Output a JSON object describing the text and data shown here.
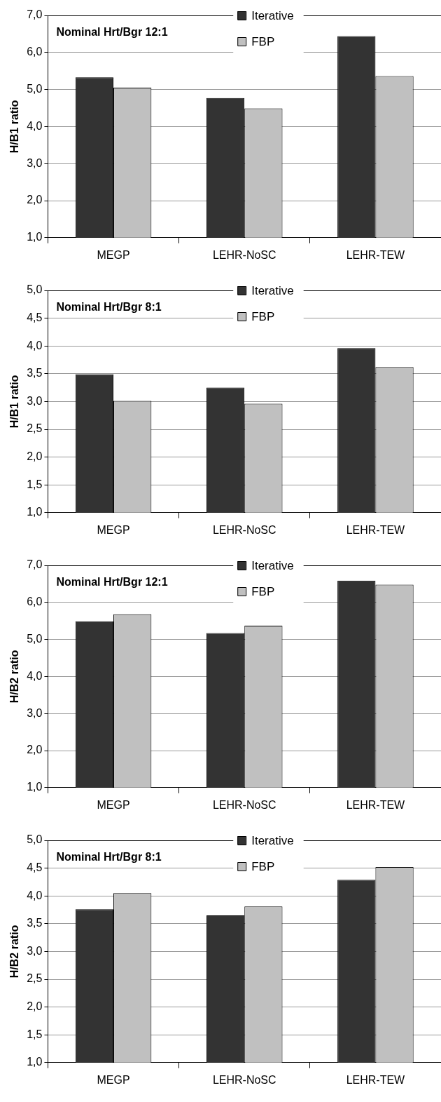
{
  "chart_data": [
    {
      "type": "bar",
      "title": "Nominal Hrt/Bgr 12:1",
      "ylabel": "H/B1 ratio",
      "categories": [
        "MEGP",
        "LEHR-NoSC",
        "LEHR-TEW"
      ],
      "series": [
        {
          "name": "Iterative",
          "color": "#333333",
          "values": [
            5.33,
            4.77,
            6.44
          ]
        },
        {
          "name": "FBP",
          "color": "#c0c0c0",
          "values": [
            5.05,
            4.49,
            5.36
          ]
        }
      ],
      "ylim": [
        1,
        7
      ],
      "yticks": [
        {
          "value": 1,
          "label": "1,0"
        },
        {
          "value": 2,
          "label": "2,0"
        },
        {
          "value": 3,
          "label": "3,0"
        },
        {
          "value": 4,
          "label": "4,0"
        },
        {
          "value": 5,
          "label": "5,0"
        },
        {
          "value": 6,
          "label": "6,0"
        },
        {
          "value": 7,
          "label": "7,0"
        }
      ],
      "grid": "y",
      "legend": "top"
    },
    {
      "type": "bar",
      "title": "Nominal Hrt/Bgr 8:1",
      "ylabel": "H/B1 ratio",
      "categories": [
        "MEGP",
        "LEHR-NoSC",
        "LEHR-TEW"
      ],
      "series": [
        {
          "name": "Iterative",
          "color": "#333333",
          "values": [
            3.49,
            3.25,
            3.96
          ]
        },
        {
          "name": "FBP",
          "color": "#c0c0c0",
          "values": [
            3.01,
            2.96,
            3.62
          ]
        }
      ],
      "ylim": [
        1,
        5
      ],
      "yticks": [
        {
          "value": 1,
          "label": "1,0"
        },
        {
          "value": 1.5,
          "label": "1,5"
        },
        {
          "value": 2,
          "label": "2,0"
        },
        {
          "value": 2.5,
          "label": "2,5"
        },
        {
          "value": 3,
          "label": "3,0"
        },
        {
          "value": 3.5,
          "label": "3,5"
        },
        {
          "value": 4,
          "label": "4,0"
        },
        {
          "value": 4.5,
          "label": "4,5"
        },
        {
          "value": 5,
          "label": "5,0"
        }
      ],
      "grid": "y",
      "legend": "top"
    },
    {
      "type": "bar",
      "title": "Nominal Hrt/Bgr 12:1",
      "ylabel": "H/B2 ratio",
      "categories": [
        "MEGP",
        "LEHR-NoSC",
        "LEHR-TEW"
      ],
      "series": [
        {
          "name": "Iterative",
          "color": "#333333",
          "values": [
            5.49,
            5.17,
            6.59
          ]
        },
        {
          "name": "FBP",
          "color": "#c0c0c0",
          "values": [
            5.68,
            5.37,
            6.48
          ]
        }
      ],
      "ylim": [
        1,
        7
      ],
      "yticks": [
        {
          "value": 1,
          "label": "1,0"
        },
        {
          "value": 2,
          "label": "2,0"
        },
        {
          "value": 3,
          "label": "3,0"
        },
        {
          "value": 4,
          "label": "4,0"
        },
        {
          "value": 5,
          "label": "5,0"
        },
        {
          "value": 6,
          "label": "6,0"
        },
        {
          "value": 7,
          "label": "7,0"
        }
      ],
      "grid": "y",
      "legend": "top"
    },
    {
      "type": "bar",
      "title": "Nominal Hrt/Bgr 8:1",
      "ylabel": "H/B2 ratio",
      "categories": [
        "MEGP",
        "LEHR-NoSC",
        "LEHR-TEW"
      ],
      "series": [
        {
          "name": "Iterative",
          "color": "#333333",
          "values": [
            3.76,
            3.65,
            4.29
          ]
        },
        {
          "name": "FBP",
          "color": "#c0c0c0",
          "values": [
            4.05,
            3.81,
            4.52
          ]
        }
      ],
      "ylim": [
        1,
        5
      ],
      "yticks": [
        {
          "value": 1,
          "label": "1,0"
        },
        {
          "value": 1.5,
          "label": "1,5"
        },
        {
          "value": 2,
          "label": "2,0"
        },
        {
          "value": 2.5,
          "label": "2,5"
        },
        {
          "value": 3,
          "label": "3,0"
        },
        {
          "value": 3.5,
          "label": "3,5"
        },
        {
          "value": 4,
          "label": "4,0"
        },
        {
          "value": 4.5,
          "label": "4,5"
        },
        {
          "value": 5,
          "label": "5,0"
        }
      ],
      "grid": "y",
      "legend": "top"
    }
  ]
}
